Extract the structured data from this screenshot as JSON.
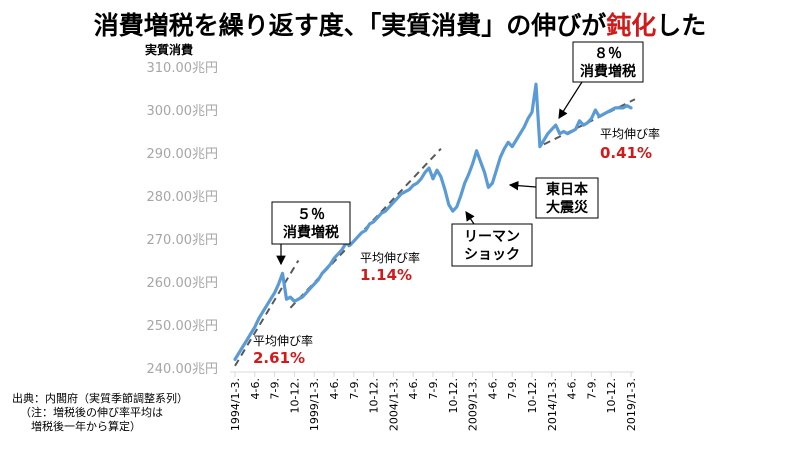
{
  "title": {
    "before": "消費増税を繰り返す度、「実質消費」の伸びが",
    "accent": "鈍化",
    "after": "した"
  },
  "chart_data": {
    "type": "line",
    "ylabel": "実質消費",
    "ylim": [
      240,
      310
    ],
    "y_ticks": [
      "240.00兆円",
      "250.00兆円",
      "260.00兆円",
      "270.00兆円",
      "280.00兆円",
      "290.00兆円",
      "300.00兆円",
      "310.00兆円"
    ],
    "y_tick_values": [
      240,
      250,
      260,
      270,
      280,
      290,
      300,
      310
    ],
    "x_ticks": [
      "1994/1-3.",
      "4-6.",
      "7-9.",
      "10-12.",
      "1999/1-3.",
      "4-6.",
      "7-9.",
      "10-12.",
      "2004/1-3.",
      "4-6.",
      "7-9.",
      "10-12.",
      "2009/1-3.",
      "4-6.",
      "7-9.",
      "10-12.",
      "2014/1-3.",
      "4-6.",
      "7-9.",
      "10-12.",
      "2019/1-3."
    ],
    "x_tick_index": [
      0,
      5,
      10,
      15,
      20,
      25,
      30,
      35,
      40,
      45,
      50,
      55,
      60,
      65,
      70,
      75,
      80,
      85,
      90,
      95,
      100
    ],
    "grid": false,
    "series_color": "#5b9bd5",
    "trend_color": "#595959",
    "series": [
      {
        "values": [
          242.0,
          243.5,
          245.0,
          246.5,
          248.0,
          249.5,
          251.5,
          253.0,
          254.5,
          256.0,
          257.5,
          259.5,
          262.0,
          256.0,
          256.5,
          255.5,
          256.0,
          256.5,
          257.5,
          258.5,
          259.5,
          260.5,
          262.0,
          263.0,
          264.0,
          265.5,
          266.5,
          267.5,
          269.0,
          268.5,
          269.5,
          270.5,
          271.5,
          272.0,
          273.5,
          274.0,
          275.0,
          276.0,
          276.5,
          277.5,
          278.5,
          279.5,
          280.5,
          281.0,
          281.5,
          282.5,
          283.0,
          284.0,
          285.5,
          286.5,
          284.0,
          286.0,
          284.5,
          281.5,
          278.0,
          276.5,
          277.5,
          280.0,
          283.0,
          285.0,
          287.5,
          290.5,
          288.0,
          285.5,
          282.0,
          283.0,
          286.0,
          289.0,
          291.0,
          292.5,
          291.5,
          293.0,
          294.5,
          296.0,
          298.0,
          299.5,
          306.0,
          291.5,
          293.0,
          294.5,
          295.5,
          296.5,
          294.5,
          295.0,
          294.5,
          295.0,
          295.5,
          297.5,
          296.5,
          297.0,
          298.0,
          300.0,
          298.5,
          299.0,
          299.5,
          300.0,
          300.5,
          300.5,
          300.5,
          301.0,
          300.5
        ]
      }
    ],
    "trend_lines": [
      {
        "x": [
          0,
          16
        ],
        "y": [
          240.5,
          265.0
        ]
      },
      {
        "x": [
          14,
          52
        ],
        "y": [
          254.0,
          291.0
        ]
      },
      {
        "x": [
          78,
          101
        ],
        "y": [
          292.0,
          302.5
        ]
      }
    ]
  },
  "annotations": {
    "tax5": {
      "line1": "５％",
      "line2": "消費増税"
    },
    "tax8": {
      "line1": "８％",
      "line2": "消費増税"
    },
    "lehman": {
      "line1": "リーマン",
      "line2": "ショック"
    },
    "quake": {
      "line1": "東日本",
      "line2": "大震災"
    }
  },
  "rates": [
    {
      "label": "平均伸び率",
      "value": "2.61%"
    },
    {
      "label": "平均伸び率",
      "value": "1.14%"
    },
    {
      "label": "平均伸び率",
      "value": "0.41%"
    }
  ],
  "source": {
    "line1": "出典：内閣府（実質季節調整系列）",
    "line2": "（注：増税後の伸び率平均は",
    "line3": "　増税後一年から算定）"
  }
}
